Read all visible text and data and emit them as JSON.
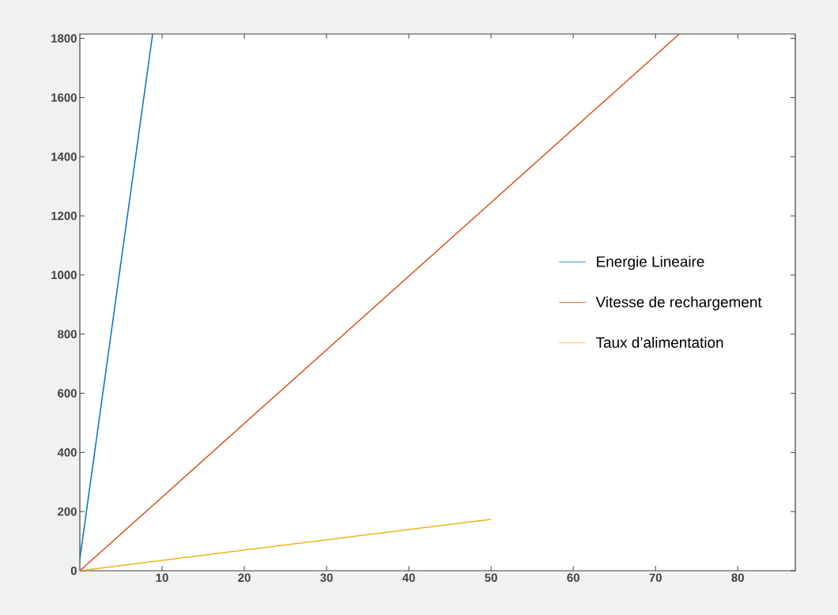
{
  "chart_data": {
    "type": "line",
    "series": [
      {
        "name": "Energie Lineaire",
        "color": "#0072bd",
        "x": [
          0,
          8.85
        ],
        "values": [
          40,
          1815
        ]
      },
      {
        "name": "Vitesse de rechargement",
        "color": "#d95319",
        "x": [
          0,
          72.9
        ],
        "values": [
          0,
          1815
        ]
      },
      {
        "name": "Taux d’alimentation",
        "color": "#edb120",
        "x": [
          0,
          50
        ],
        "values": [
          0,
          174
        ]
      }
    ],
    "xlim": [
      0,
      87
    ],
    "ylim": [
      0,
      1815
    ],
    "xticks": [
      10,
      20,
      30,
      40,
      50,
      60,
      70,
      80
    ],
    "yticks": [
      0,
      200,
      400,
      600,
      800,
      1000,
      1200,
      1400,
      1600,
      1800
    ],
    "grid": false,
    "legend": "right",
    "marker": "none",
    "line_style": "solid"
  }
}
